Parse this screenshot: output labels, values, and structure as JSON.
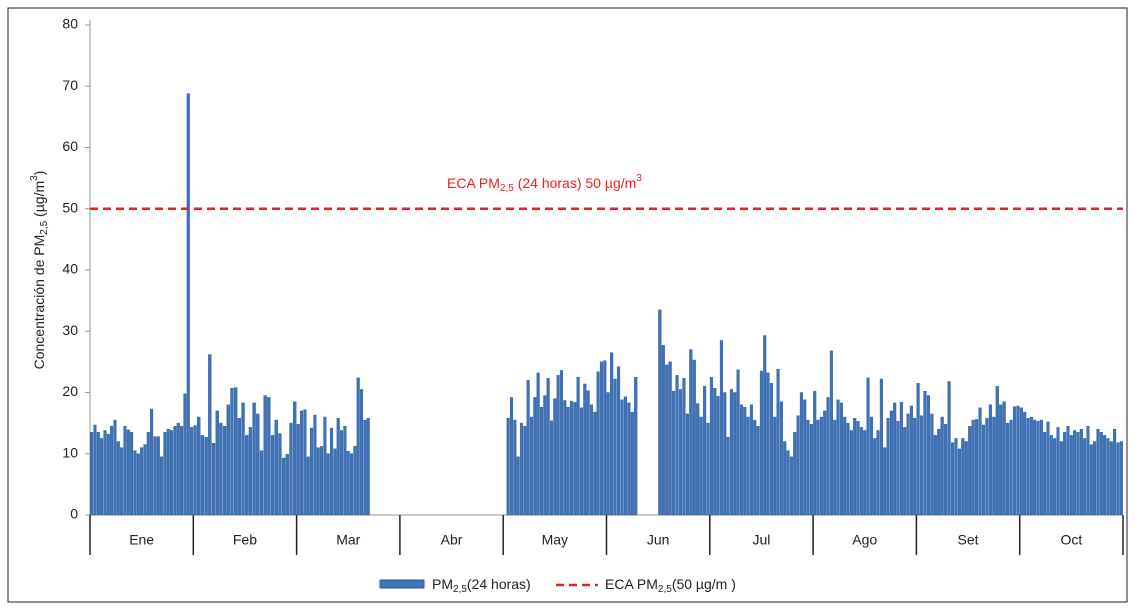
{
  "chart_data": {
    "type": "bar",
    "y_label": [
      "Concentración de PM",
      "2,5",
      " (µg/m",
      "3",
      ")"
    ],
    "threshold": 50,
    "threshold_label": [
      "ECA PM",
      "2,5",
      " (24 horas) 50 µg/m",
      "3"
    ],
    "threshold_color": "#e8231f",
    "color": "#3f72b8",
    "ylim": [
      0,
      80
    ],
    "yticks": [
      0,
      10,
      20,
      30,
      40,
      50,
      60,
      70,
      80
    ],
    "legend": [
      [
        "PM",
        "2,5",
        "(24 horas)"
      ],
      [
        "ECA PM",
        "2,5",
        "(50 µg/m  )"
      ]
    ],
    "groups": [
      {
        "label": "Ene",
        "values": [
          13.5,
          14.7,
          13.5,
          12.5,
          13.8,
          13.2,
          14.5,
          15.5,
          12,
          11,
          14.5,
          13.9,
          13.5,
          10.5,
          10,
          11,
          11.5,
          13.5,
          17.3,
          12.8,
          12.8,
          9.5,
          13.5,
          14,
          13.8,
          14.5,
          15,
          14.5,
          19.8,
          68.8,
          14.3
        ]
      },
      {
        "label": "Feb",
        "values": [
          14.6,
          16,
          13,
          12.7,
          26.2,
          11.7,
          17,
          15,
          14.5,
          18,
          20.7,
          20.8,
          15.8,
          18.3,
          13,
          14.3,
          18.3,
          16.5,
          10.5,
          19.5,
          19.2,
          13,
          15.5,
          13.3,
          9.3,
          9.9,
          15,
          18.5
        ]
      },
      {
        "label": "Mar",
        "values": [
          14.8,
          17,
          17.2,
          9.5,
          14.2,
          16.3,
          11,
          11.2,
          16,
          10,
          14.2,
          10.8,
          15.8,
          13.8,
          14.5,
          10.4,
          10,
          11.2,
          22.4,
          20.5,
          15.5,
          15.8,
          null,
          null,
          null,
          null,
          null,
          null,
          null,
          null,
          null
        ]
      },
      {
        "label": "Abr",
        "values": [
          null,
          null,
          null,
          null,
          null,
          null,
          null,
          null,
          null,
          null,
          null,
          null,
          null,
          null,
          null,
          null,
          null,
          null,
          null,
          null,
          null,
          null,
          null,
          null,
          null,
          null,
          null,
          null,
          null,
          null
        ]
      },
      {
        "label": "May",
        "values": [
          null,
          15.8,
          19.2,
          15.5,
          9.5,
          15,
          14.5,
          22,
          16,
          19.2,
          23.2,
          17.6,
          19.5,
          22.3,
          15.4,
          19,
          22.8,
          23.6,
          18.7,
          17.6,
          18.6,
          18.4,
          22.5,
          17.5,
          21.4,
          20.3,
          18,
          16.8,
          23.4,
          25,
          25.2
        ]
      },
      {
        "label": "Jun",
        "values": [
          20,
          26.5,
          22.2,
          24.2,
          18.8,
          19.3,
          18.3,
          16.8,
          22.5,
          null,
          null,
          null,
          null,
          null,
          null,
          33.5,
          27.7,
          24.5,
          25,
          20.2,
          22.8,
          20.5,
          22.3,
          16.5,
          27,
          25.3,
          18.2,
          16,
          21,
          15
        ]
      },
      {
        "label": "Jul",
        "values": [
          22.5,
          20.7,
          19.4,
          28.5,
          20,
          12.7,
          20.5,
          20,
          23.7,
          18,
          17.6,
          16,
          18,
          15.5,
          14.5,
          23.5,
          29.3,
          23.2,
          21.5,
          16,
          23.8,
          18.5,
          12,
          10.5,
          9.5,
          13.5,
          16.2,
          20,
          18.8,
          15.5,
          14.8
        ]
      },
      {
        "label": "Ago",
        "values": [
          20.2,
          15.5,
          16,
          17,
          19.2,
          26.8,
          15.5,
          18.8,
          18.3,
          16,
          15,
          13.8,
          15.8,
          15.3,
          14.3,
          13.8,
          22.4,
          16,
          12.5,
          13.8,
          22.2,
          11,
          15.8,
          17,
          18.3,
          15.3,
          18.4,
          14.3,
          16.5,
          17.8,
          15.8
        ]
      },
      {
        "label": "Set",
        "values": [
          21.5,
          16.2,
          20.2,
          19.5,
          16.5,
          13,
          14,
          16,
          14.8,
          21.8,
          11.8,
          12.5,
          10.8,
          12.5,
          12,
          14.5,
          15.5,
          15.6,
          17.5,
          14.7,
          15.8,
          18,
          16,
          21,
          18,
          18.5,
          15,
          15.5,
          17.7,
          17.8
        ]
      },
      {
        "label": "Oct",
        "values": [
          17.5,
          16.8,
          15.8,
          16,
          15.5,
          15.3,
          15.5,
          13.5,
          15.2,
          13,
          12.5,
          14.3,
          12,
          13.5,
          14.5,
          13,
          13.8,
          13.5,
          14,
          12.5,
          14.5,
          11.5,
          12,
          14,
          13.5,
          13,
          12.5,
          12,
          14,
          11.8,
          12
        ]
      }
    ]
  }
}
